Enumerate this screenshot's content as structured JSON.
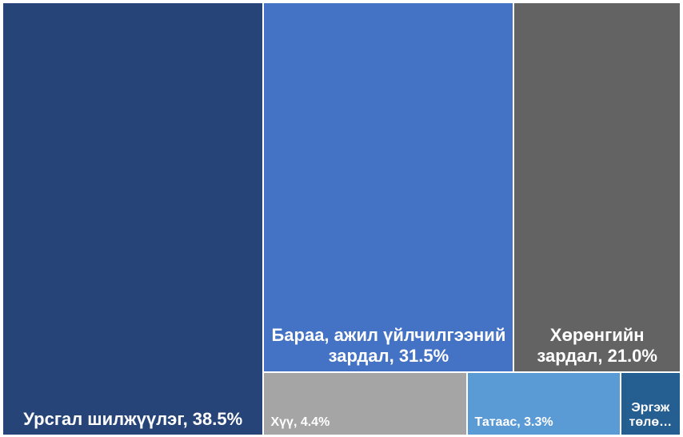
{
  "chart_data": {
    "type": "treemap",
    "categories": [
      "Урсгал шилжүүлэг, 38.5%",
      "Бараа, ажил үйлчилгээний зардал, 31.5%",
      "Хөрөнгийн зардал, 21.0%",
      "Хүү, 4.4%",
      "Татаас, 3.3%",
      "Эргэж төлө…"
    ],
    "values": [
      38.5,
      31.5,
      21.0,
      4.4,
      3.3,
      1.3
    ],
    "colors": [
      "#264478",
      "#4472c4",
      "#636363",
      "#a5a5a5",
      "#5b9bd5",
      "#255e91"
    ]
  }
}
